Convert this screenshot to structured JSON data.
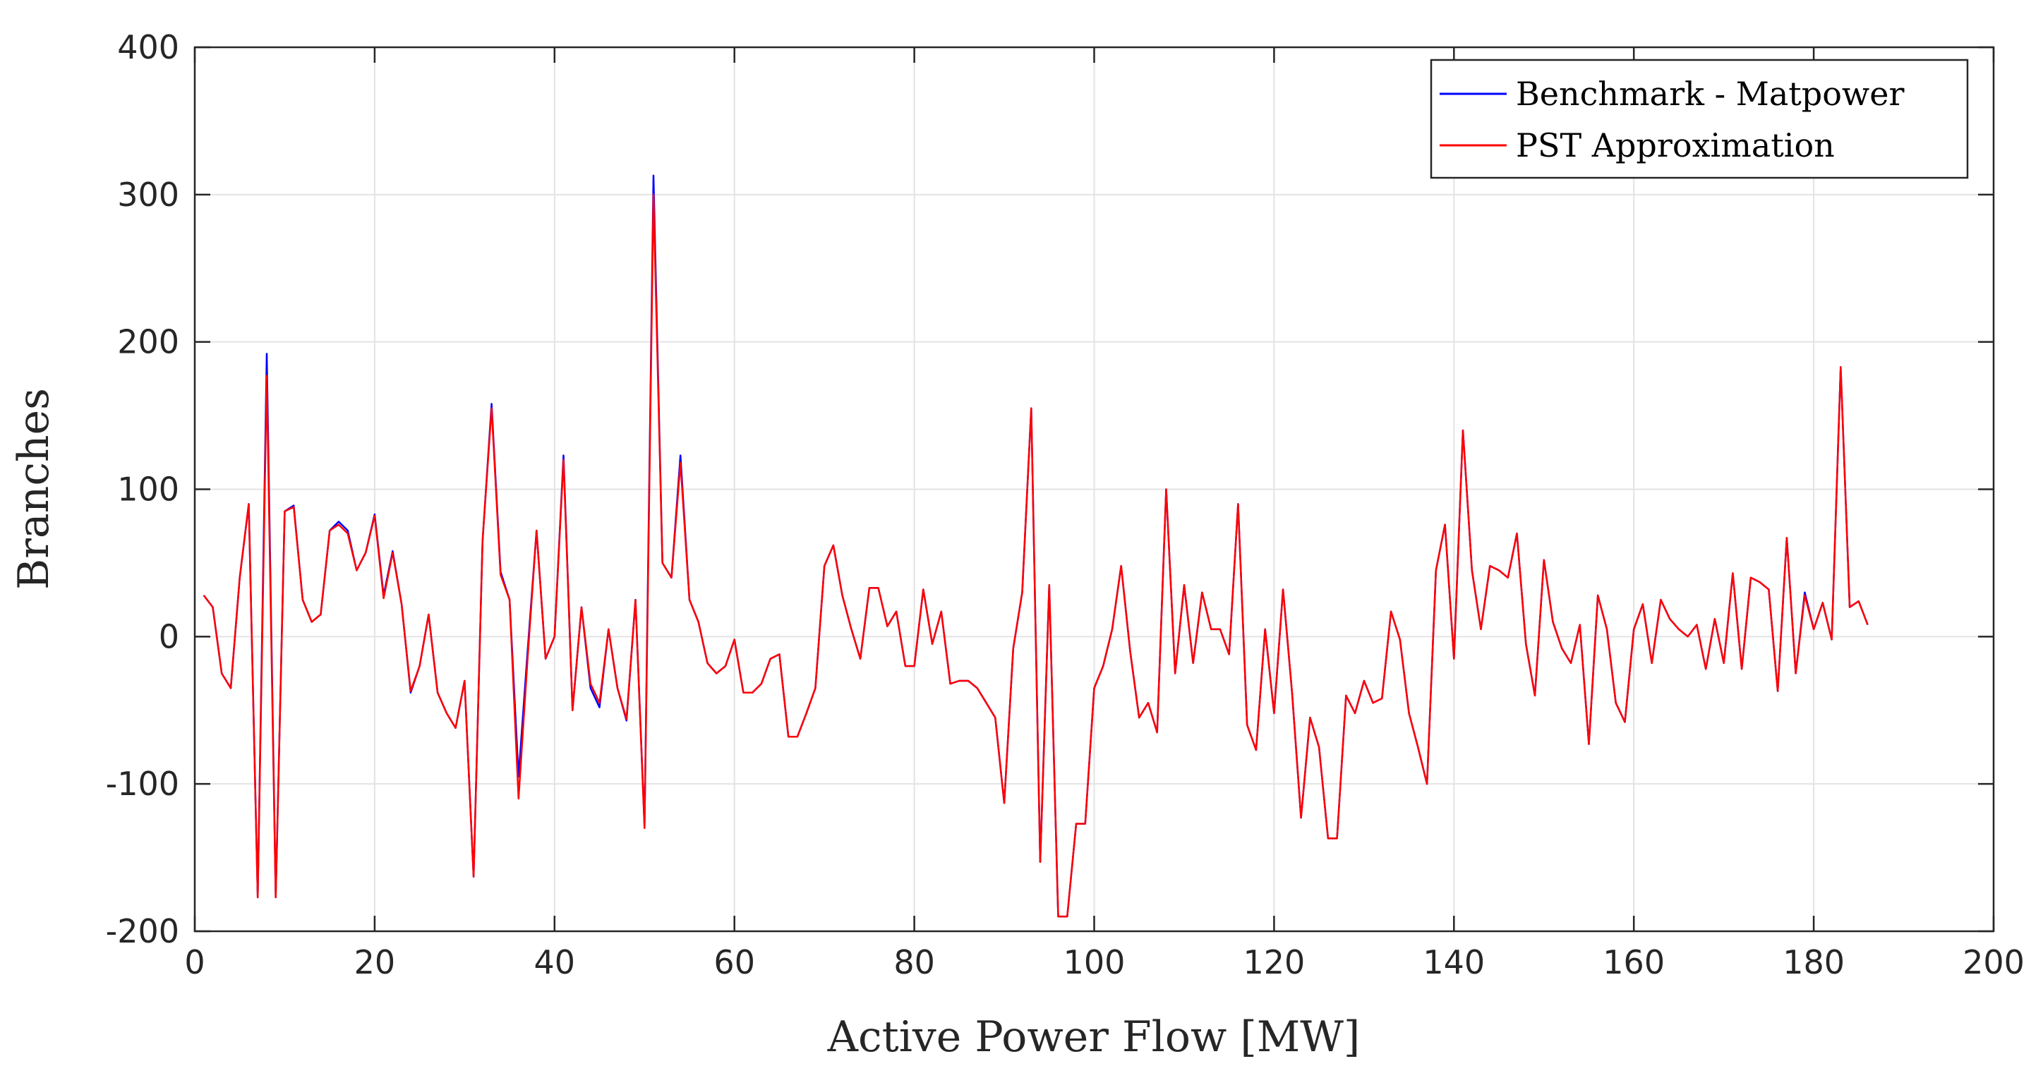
{
  "chart_data": {
    "type": "line",
    "title": "",
    "xlabel": "Active Power Flow [MW]",
    "ylabel": "Branches",
    "xlim": [
      0,
      200
    ],
    "ylim": [
      -200,
      400
    ],
    "xticks": [
      0,
      20,
      40,
      60,
      80,
      100,
      120,
      140,
      160,
      180,
      200
    ],
    "yticks": [
      -200,
      -100,
      0,
      100,
      200,
      300,
      400
    ],
    "xtick_labels": [
      "0",
      "20",
      "40",
      "60",
      "80",
      "100",
      "120",
      "140",
      "160",
      "180",
      "200"
    ],
    "ytick_labels": [
      "-200",
      "-100",
      "0",
      "100",
      "200",
      "300",
      "400"
    ],
    "grid": true,
    "legend_position": "top-right",
    "x": [
      1,
      2,
      3,
      4,
      5,
      6,
      7,
      8,
      9,
      10,
      11,
      12,
      13,
      14,
      15,
      16,
      17,
      18,
      19,
      20,
      21,
      22,
      23,
      24,
      25,
      26,
      27,
      28,
      29,
      30,
      31,
      32,
      33,
      34,
      35,
      36,
      37,
      38,
      39,
      40,
      41,
      42,
      43,
      44,
      45,
      46,
      47,
      48,
      49,
      50,
      51,
      52,
      53,
      54,
      55,
      56,
      57,
      58,
      59,
      60,
      61,
      62,
      63,
      64,
      65,
      66,
      67,
      68,
      69,
      70,
      71,
      72,
      73,
      74,
      75,
      76,
      77,
      78,
      79,
      80,
      81,
      82,
      83,
      84,
      85,
      86,
      87,
      88,
      89,
      90,
      91,
      92,
      93,
      94,
      95,
      96,
      97,
      98,
      99,
      100,
      101,
      102,
      103,
      104,
      105,
      106,
      107,
      108,
      109,
      110,
      111,
      112,
      113,
      114,
      115,
      116,
      117,
      118,
      119,
      120,
      121,
      122,
      123,
      124,
      125,
      126,
      127,
      128,
      129,
      130,
      131,
      132,
      133,
      134,
      135,
      136,
      137,
      138,
      139,
      140,
      141,
      142,
      143,
      144,
      145,
      146,
      147,
      148,
      149,
      150,
      151,
      152,
      153,
      154,
      155,
      156,
      157,
      158,
      159,
      160,
      161,
      162,
      163,
      164,
      165,
      166,
      167,
      168,
      169,
      170,
      171,
      172,
      173,
      174,
      175,
      176,
      177,
      178,
      179,
      180,
      181,
      182,
      183,
      184,
      185,
      186
    ],
    "series": [
      {
        "name": "Benchmark - Matpower",
        "color": "#0000ff",
        "values": [
          28,
          20,
          -25,
          -35,
          40,
          90,
          -177,
          192,
          -177,
          85,
          89,
          25,
          10,
          15,
          72,
          78,
          72,
          45,
          57,
          83,
          28,
          58,
          22,
          -38,
          -20,
          15,
          -38,
          -52,
          -62,
          -30,
          -163,
          65,
          158,
          44,
          25,
          -95,
          -10,
          72,
          -15,
          0,
          123,
          -50,
          20,
          -35,
          -48,
          5,
          -35,
          -57,
          25,
          -128,
          313,
          50,
          40,
          123,
          25,
          10,
          -18,
          -25,
          -20,
          -2,
          -38,
          -38,
          -32,
          -15,
          -12,
          -68,
          -68,
          -52,
          -35,
          48,
          62,
          28,
          5,
          -15,
          33,
          33,
          7,
          17,
          -20,
          -20,
          32,
          -5,
          17,
          -32,
          -30,
          -30,
          -35,
          -45,
          -55,
          -113,
          -8,
          30,
          155,
          -153,
          35,
          -190,
          -190,
          -127,
          -127,
          -35,
          -20,
          5,
          48,
          -10,
          -55,
          -45,
          -65,
          100,
          -25,
          35,
          -18,
          30,
          5,
          5,
          -12,
          90,
          -60,
          -77,
          5,
          -52,
          32,
          -38,
          -123,
          -55,
          -75,
          -137,
          -137,
          -40,
          -52,
          -30,
          -45,
          -42,
          17,
          -2,
          -52,
          -75,
          -100,
          45,
          76,
          -15,
          140,
          45,
          5,
          48,
          45,
          40,
          70,
          -5,
          -40,
          52,
          10,
          -8,
          -18,
          8,
          -73,
          28,
          5,
          -45,
          -58,
          5,
          22,
          -18,
          25,
          12,
          5,
          0,
          8,
          -22,
          12,
          -18,
          43,
          -22,
          40,
          37,
          32,
          -37,
          67,
          -25,
          30,
          5,
          23,
          -2,
          183,
          20,
          24,
          8
        ]
      },
      {
        "name": "PST Approximation",
        "color": "#ff0000",
        "values": [
          28,
          20,
          -25,
          -35,
          40,
          90,
          -177,
          177,
          -177,
          85,
          88,
          25,
          10,
          15,
          72,
          76,
          70,
          45,
          57,
          82,
          26,
          57,
          22,
          -37,
          -20,
          15,
          -38,
          -52,
          -62,
          -30,
          -163,
          65,
          155,
          42,
          25,
          -110,
          -15,
          72,
          -15,
          0,
          120,
          -50,
          20,
          -32,
          -45,
          5,
          -35,
          -56,
          25,
          -130,
          300,
          50,
          40,
          118,
          25,
          10,
          -18,
          -25,
          -20,
          -2,
          -38,
          -38,
          -32,
          -15,
          -12,
          -68,
          -68,
          -52,
          -35,
          48,
          62,
          28,
          5,
          -15,
          33,
          33,
          7,
          17,
          -20,
          -20,
          32,
          -5,
          17,
          -32,
          -30,
          -30,
          -35,
          -45,
          -55,
          -113,
          -8,
          30,
          155,
          -153,
          35,
          -190,
          -190,
          -127,
          -127,
          -35,
          -20,
          5,
          48,
          -10,
          -55,
          -45,
          -65,
          100,
          -25,
          35,
          -18,
          30,
          5,
          5,
          -12,
          90,
          -60,
          -77,
          5,
          -52,
          32,
          -38,
          -123,
          -55,
          -75,
          -137,
          -137,
          -40,
          -52,
          -30,
          -45,
          -42,
          17,
          -2,
          -52,
          -75,
          -100,
          45,
          76,
          -15,
          140,
          45,
          5,
          48,
          45,
          40,
          70,
          -5,
          -40,
          52,
          10,
          -8,
          -18,
          8,
          -73,
          28,
          5,
          -45,
          -58,
          5,
          22,
          -18,
          25,
          12,
          5,
          0,
          8,
          -22,
          12,
          -18,
          43,
          -22,
          40,
          37,
          32,
          -37,
          67,
          -25,
          28,
          5,
          23,
          -2,
          183,
          20,
          24,
          8
        ]
      }
    ]
  }
}
